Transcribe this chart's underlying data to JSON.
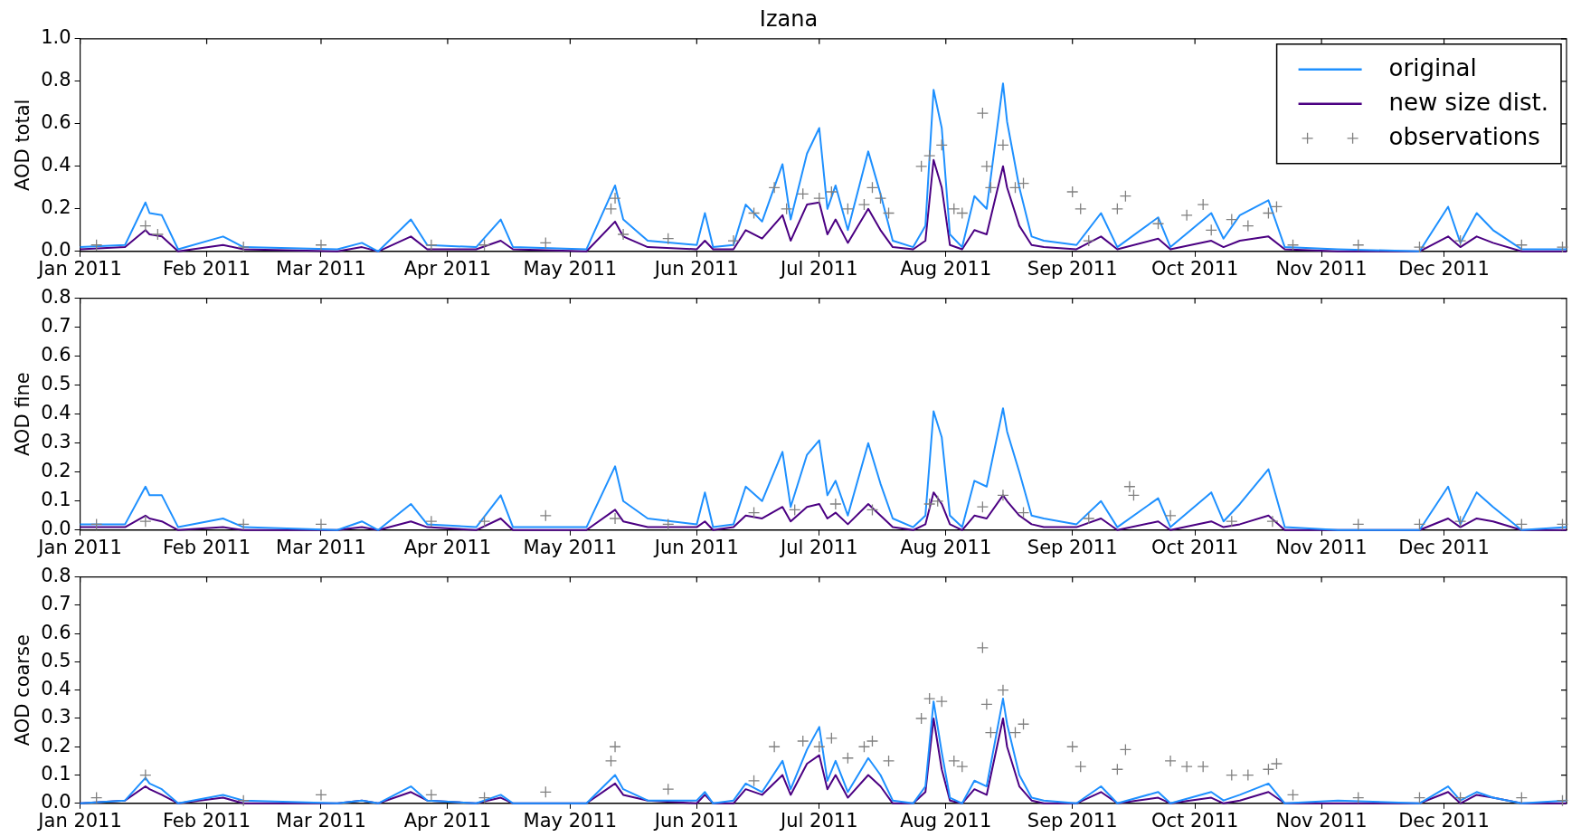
{
  "chart_data": [
    {
      "type": "line",
      "title": "Izana",
      "ylabel": "AOD total",
      "legend": "top right",
      "x": [
        "2011-01-01",
        "2011-01-12",
        "2011-01-17",
        "2011-01-18",
        "2011-01-21",
        "2011-01-25",
        "2011-02-05",
        "2011-02-10",
        "2011-03-05",
        "2011-03-11",
        "2011-03-15",
        "2011-03-23",
        "2011-03-27",
        "2011-04-08",
        "2011-04-14",
        "2011-04-17",
        "2011-05-05",
        "2011-05-12",
        "2011-05-14",
        "2011-05-20",
        "2011-06-01",
        "2011-06-03",
        "2011-06-05",
        "2011-06-10",
        "2011-06-13",
        "2011-06-17",
        "2011-06-22",
        "2011-06-24",
        "2011-06-28",
        "2011-07-01",
        "2011-07-03",
        "2011-07-05",
        "2011-07-08",
        "2011-07-13",
        "2011-07-16",
        "2011-07-19",
        "2011-07-24",
        "2011-07-27",
        "2011-07-29",
        "2011-07-31",
        "2011-08-02",
        "2011-08-05",
        "2011-08-08",
        "2011-08-11",
        "2011-08-15",
        "2011-08-16",
        "2011-08-19",
        "2011-08-22",
        "2011-08-25",
        "2011-09-02",
        "2011-09-08",
        "2011-09-12",
        "2011-09-22",
        "2011-09-25",
        "2011-10-05",
        "2011-10-08",
        "2011-10-12",
        "2011-10-19",
        "2011-10-23",
        "2011-11-05",
        "2011-11-25",
        "2011-12-02",
        "2011-12-05",
        "2011-12-09",
        "2011-12-13",
        "2011-12-20",
        "2011-12-31"
      ],
      "series": [
        {
          "name": "original",
          "color": "#1e90ff",
          "values": [
            0.02,
            0.03,
            0.23,
            0.18,
            0.17,
            0.01,
            0.07,
            0.02,
            0.01,
            0.04,
            0.0,
            0.15,
            0.03,
            0.02,
            0.15,
            0.02,
            0.01,
            0.31,
            0.15,
            0.05,
            0.03,
            0.18,
            0.02,
            0.03,
            0.22,
            0.14,
            0.41,
            0.15,
            0.46,
            0.58,
            0.2,
            0.31,
            0.1,
            0.47,
            0.27,
            0.05,
            0.02,
            0.12,
            0.76,
            0.58,
            0.08,
            0.02,
            0.26,
            0.2,
            0.79,
            0.61,
            0.3,
            0.07,
            0.05,
            0.03,
            0.18,
            0.02,
            0.16,
            0.02,
            0.18,
            0.06,
            0.17,
            0.24,
            0.02,
            0.01,
            0.0,
            0.21,
            0.04,
            0.18,
            0.1,
            0.01,
            0.01
          ]
        },
        {
          "name": "new size dist.",
          "color": "#4b0082",
          "values": [
            0.01,
            0.02,
            0.1,
            0.08,
            0.07,
            0.0,
            0.03,
            0.01,
            0.0,
            0.02,
            0.0,
            0.07,
            0.01,
            0.01,
            0.05,
            0.01,
            0.0,
            0.14,
            0.07,
            0.02,
            0.01,
            0.05,
            0.01,
            0.01,
            0.1,
            0.06,
            0.17,
            0.05,
            0.22,
            0.23,
            0.08,
            0.15,
            0.04,
            0.2,
            0.1,
            0.02,
            0.01,
            0.05,
            0.43,
            0.3,
            0.03,
            0.01,
            0.1,
            0.08,
            0.4,
            0.3,
            0.12,
            0.03,
            0.02,
            0.01,
            0.07,
            0.01,
            0.06,
            0.01,
            0.05,
            0.02,
            0.05,
            0.07,
            0.01,
            0.0,
            0.0,
            0.07,
            0.02,
            0.07,
            0.04,
            0.0,
            0.0
          ]
        },
        {
          "name": "observations",
          "type": "scatter",
          "marker": "cross",
          "color": "#808080",
          "x": [
            "2011-01-05",
            "2011-01-17",
            "2011-01-20",
            "2011-02-10",
            "2011-03-01",
            "2011-03-28",
            "2011-04-10",
            "2011-04-25",
            "2011-05-11",
            "2011-05-12",
            "2011-05-14",
            "2011-05-25",
            "2011-06-10",
            "2011-06-15",
            "2011-06-20",
            "2011-06-23",
            "2011-06-27",
            "2011-07-01",
            "2011-07-04",
            "2011-07-08",
            "2011-07-12",
            "2011-07-14",
            "2011-07-16",
            "2011-07-18",
            "2011-07-26",
            "2011-07-28",
            "2011-07-31",
            "2011-08-03",
            "2011-08-05",
            "2011-08-10",
            "2011-08-11",
            "2011-08-12",
            "2011-08-15",
            "2011-08-18",
            "2011-08-20",
            "2011-09-01",
            "2011-09-03",
            "2011-09-05",
            "2011-09-12",
            "2011-09-14",
            "2011-09-22",
            "2011-09-29",
            "2011-10-03",
            "2011-10-05",
            "2011-10-10",
            "2011-10-14",
            "2011-10-19",
            "2011-10-21",
            "2011-10-25",
            "2011-11-10",
            "2011-11-25",
            "2011-12-05",
            "2011-12-20",
            "2011-12-30"
          ],
          "values": [
            0.03,
            0.12,
            0.08,
            0.02,
            0.03,
            0.03,
            0.03,
            0.04,
            0.2,
            0.25,
            0.08,
            0.06,
            0.05,
            0.18,
            0.3,
            0.2,
            0.27,
            0.25,
            0.28,
            0.2,
            0.22,
            0.3,
            0.25,
            0.18,
            0.4,
            0.45,
            0.5,
            0.2,
            0.18,
            0.65,
            0.4,
            0.3,
            0.5,
            0.3,
            0.32,
            0.28,
            0.2,
            0.05,
            0.2,
            0.26,
            0.13,
            0.17,
            0.22,
            0.1,
            0.15,
            0.12,
            0.18,
            0.21,
            0.03,
            0.03,
            0.02,
            0.05,
            0.03,
            0.02
          ]
        }
      ],
      "xlim": [
        "2011-01-01",
        "2011-12-31"
      ],
      "xticks": [
        {
          "value": "2011-01-01",
          "label": "Jan 2011"
        },
        {
          "value": "2011-02-01",
          "label": "Feb 2011"
        },
        {
          "value": "2011-03-01",
          "label": "Mar 2011"
        },
        {
          "value": "2011-04-01",
          "label": "Apr 2011"
        },
        {
          "value": "2011-05-01",
          "label": "May 2011"
        },
        {
          "value": "2011-06-01",
          "label": "Jun 2011"
        },
        {
          "value": "2011-07-01",
          "label": "Jul 2011"
        },
        {
          "value": "2011-08-01",
          "label": "Aug 2011"
        },
        {
          "value": "2011-09-01",
          "label": "Sep 2011"
        },
        {
          "value": "2011-10-01",
          "label": "Oct 2011"
        },
        {
          "value": "2011-11-01",
          "label": "Nov 2011"
        },
        {
          "value": "2011-12-01",
          "label": "Dec 2011"
        }
      ],
      "ylim": [
        0,
        1
      ],
      "yticks": [
        {
          "value": 0,
          "label": "0.0"
        },
        {
          "value": 0.2,
          "label": "0.2"
        },
        {
          "value": 0.4,
          "label": "0.4"
        },
        {
          "value": 0.6,
          "label": "0.6"
        },
        {
          "value": 0.8,
          "label": "0.8"
        },
        {
          "value": 1,
          "label": "1.0"
        }
      ],
      "grid": false
    },
    {
      "type": "line",
      "ylabel": "AOD fine",
      "x": [
        "2011-01-01",
        "2011-01-12",
        "2011-01-17",
        "2011-01-18",
        "2011-01-21",
        "2011-01-25",
        "2011-02-05",
        "2011-02-10",
        "2011-03-05",
        "2011-03-11",
        "2011-03-15",
        "2011-03-23",
        "2011-03-27",
        "2011-04-08",
        "2011-04-14",
        "2011-04-17",
        "2011-05-05",
        "2011-05-12",
        "2011-05-14",
        "2011-05-20",
        "2011-06-01",
        "2011-06-03",
        "2011-06-05",
        "2011-06-10",
        "2011-06-13",
        "2011-06-17",
        "2011-06-22",
        "2011-06-24",
        "2011-06-28",
        "2011-07-01",
        "2011-07-03",
        "2011-07-05",
        "2011-07-08",
        "2011-07-13",
        "2011-07-16",
        "2011-07-19",
        "2011-07-24",
        "2011-07-27",
        "2011-07-29",
        "2011-07-31",
        "2011-08-02",
        "2011-08-05",
        "2011-08-08",
        "2011-08-11",
        "2011-08-15",
        "2011-08-16",
        "2011-08-19",
        "2011-08-22",
        "2011-08-25",
        "2011-09-02",
        "2011-09-08",
        "2011-09-12",
        "2011-09-22",
        "2011-09-25",
        "2011-10-05",
        "2011-10-08",
        "2011-10-12",
        "2011-10-19",
        "2011-10-23",
        "2011-11-05",
        "2011-11-25",
        "2011-12-02",
        "2011-12-05",
        "2011-12-09",
        "2011-12-13",
        "2011-12-20",
        "2011-12-31"
      ],
      "series": [
        {
          "color": "#1e90ff",
          "values": [
            0.02,
            0.02,
            0.15,
            0.12,
            0.12,
            0.01,
            0.04,
            0.01,
            0.0,
            0.03,
            0.0,
            0.09,
            0.02,
            0.01,
            0.12,
            0.01,
            0.01,
            0.22,
            0.1,
            0.04,
            0.02,
            0.13,
            0.01,
            0.02,
            0.15,
            0.1,
            0.27,
            0.08,
            0.26,
            0.31,
            0.12,
            0.17,
            0.05,
            0.3,
            0.16,
            0.04,
            0.01,
            0.05,
            0.41,
            0.32,
            0.05,
            0.01,
            0.17,
            0.15,
            0.42,
            0.34,
            0.2,
            0.05,
            0.04,
            0.02,
            0.1,
            0.01,
            0.11,
            0.01,
            0.13,
            0.03,
            0.09,
            0.21,
            0.01,
            0.0,
            0.0,
            0.15,
            0.02,
            0.13,
            0.08,
            0.0,
            0.01
          ]
        },
        {
          "color": "#4b0082",
          "values": [
            0.01,
            0.01,
            0.05,
            0.04,
            0.03,
            0.0,
            0.01,
            0.0,
            0.0,
            0.01,
            0.0,
            0.03,
            0.01,
            0.0,
            0.04,
            0.0,
            0.0,
            0.07,
            0.03,
            0.01,
            0.01,
            0.03,
            0.0,
            0.01,
            0.05,
            0.04,
            0.08,
            0.03,
            0.08,
            0.09,
            0.04,
            0.06,
            0.02,
            0.09,
            0.05,
            0.01,
            0.0,
            0.02,
            0.13,
            0.09,
            0.02,
            0.0,
            0.05,
            0.04,
            0.12,
            0.1,
            0.05,
            0.02,
            0.01,
            0.01,
            0.04,
            0.0,
            0.03,
            0.0,
            0.03,
            0.01,
            0.02,
            0.05,
            0.0,
            0.0,
            0.0,
            0.04,
            0.01,
            0.04,
            0.03,
            0.0,
            0.0
          ]
        },
        {
          "type": "scatter",
          "marker": "cross",
          "color": "#808080",
          "x": [
            "2011-01-05",
            "2011-01-17",
            "2011-02-10",
            "2011-03-01",
            "2011-03-28",
            "2011-04-10",
            "2011-04-25",
            "2011-05-12",
            "2011-05-25",
            "2011-06-15",
            "2011-06-25",
            "2011-07-05",
            "2011-07-14",
            "2011-07-28",
            "2011-07-30",
            "2011-08-10",
            "2011-08-15",
            "2011-08-20",
            "2011-09-05",
            "2011-09-15",
            "2011-09-16",
            "2011-09-25",
            "2011-10-10",
            "2011-10-20",
            "2011-11-10",
            "2011-11-25",
            "2011-12-05",
            "2011-12-20",
            "2011-12-30"
          ],
          "values": [
            0.02,
            0.03,
            0.02,
            0.02,
            0.03,
            0.03,
            0.05,
            0.04,
            0.02,
            0.06,
            0.07,
            0.09,
            0.07,
            0.09,
            0.1,
            0.08,
            0.12,
            0.06,
            0.04,
            0.15,
            0.12,
            0.05,
            0.03,
            0.03,
            0.02,
            0.02,
            0.03,
            0.02,
            0.02
          ]
        }
      ],
      "xlim": [
        "2011-01-01",
        "2011-12-31"
      ],
      "xticks": [
        {
          "value": "2011-01-01",
          "label": "Jan 2011"
        },
        {
          "value": "2011-02-01",
          "label": "Feb 2011"
        },
        {
          "value": "2011-03-01",
          "label": "Mar 2011"
        },
        {
          "value": "2011-04-01",
          "label": "Apr 2011"
        },
        {
          "value": "2011-05-01",
          "label": "May 2011"
        },
        {
          "value": "2011-06-01",
          "label": "Jun 2011"
        },
        {
          "value": "2011-07-01",
          "label": "Jul 2011"
        },
        {
          "value": "2011-08-01",
          "label": "Aug 2011"
        },
        {
          "value": "2011-09-01",
          "label": "Sep 2011"
        },
        {
          "value": "2011-10-01",
          "label": "Oct 2011"
        },
        {
          "value": "2011-11-01",
          "label": "Nov 2011"
        },
        {
          "value": "2011-12-01",
          "label": "Dec 2011"
        }
      ],
      "ylim": [
        0,
        0.8
      ],
      "yticks": [
        {
          "value": 0,
          "label": "0.0"
        },
        0.1,
        0.2,
        0.3,
        0.4,
        0.5,
        0.6,
        0.7,
        0.8
      ],
      "grid": false
    },
    {
      "type": "line",
      "ylabel": "AOD coarse",
      "x": [
        "2011-01-01",
        "2011-01-12",
        "2011-01-17",
        "2011-01-18",
        "2011-01-21",
        "2011-01-25",
        "2011-02-05",
        "2011-02-10",
        "2011-03-05",
        "2011-03-11",
        "2011-03-15",
        "2011-03-23",
        "2011-03-27",
        "2011-04-08",
        "2011-04-14",
        "2011-04-17",
        "2011-05-05",
        "2011-05-12",
        "2011-05-14",
        "2011-05-20",
        "2011-06-01",
        "2011-06-03",
        "2011-06-05",
        "2011-06-10",
        "2011-06-13",
        "2011-06-17",
        "2011-06-22",
        "2011-06-24",
        "2011-06-28",
        "2011-07-01",
        "2011-07-03",
        "2011-07-05",
        "2011-07-08",
        "2011-07-13",
        "2011-07-16",
        "2011-07-19",
        "2011-07-24",
        "2011-07-27",
        "2011-07-29",
        "2011-07-31",
        "2011-08-02",
        "2011-08-05",
        "2011-08-08",
        "2011-08-11",
        "2011-08-15",
        "2011-08-16",
        "2011-08-19",
        "2011-08-22",
        "2011-08-25",
        "2011-09-02",
        "2011-09-08",
        "2011-09-12",
        "2011-09-22",
        "2011-09-25",
        "2011-10-05",
        "2011-10-08",
        "2011-10-12",
        "2011-10-19",
        "2011-10-23",
        "2011-11-05",
        "2011-11-25",
        "2011-12-02",
        "2011-12-05",
        "2011-12-09",
        "2011-12-13",
        "2011-12-20",
        "2011-12-31"
      ],
      "series": [
        {
          "color": "#1e90ff",
          "values": [
            0.0,
            0.01,
            0.09,
            0.07,
            0.05,
            0.0,
            0.03,
            0.01,
            0.0,
            0.01,
            0.0,
            0.06,
            0.01,
            0.0,
            0.03,
            0.0,
            0.0,
            0.1,
            0.05,
            0.01,
            0.01,
            0.04,
            0.0,
            0.01,
            0.07,
            0.04,
            0.15,
            0.05,
            0.19,
            0.27,
            0.08,
            0.15,
            0.04,
            0.16,
            0.1,
            0.01,
            0.0,
            0.06,
            0.36,
            0.18,
            0.02,
            0.0,
            0.08,
            0.06,
            0.37,
            0.28,
            0.1,
            0.02,
            0.01,
            0.0,
            0.06,
            0.0,
            0.04,
            0.0,
            0.04,
            0.01,
            0.03,
            0.07,
            0.0,
            0.01,
            0.0,
            0.06,
            0.01,
            0.04,
            0.02,
            0.0,
            0.01
          ]
        },
        {
          "color": "#4b0082",
          "values": [
            0.0,
            0.01,
            0.06,
            0.05,
            0.03,
            0.0,
            0.02,
            0.0,
            0.0,
            0.01,
            0.0,
            0.04,
            0.01,
            0.0,
            0.02,
            0.0,
            0.0,
            0.07,
            0.03,
            0.01,
            0.0,
            0.03,
            0.0,
            0.0,
            0.05,
            0.03,
            0.1,
            0.03,
            0.14,
            0.17,
            0.05,
            0.1,
            0.02,
            0.1,
            0.06,
            0.0,
            0.0,
            0.04,
            0.3,
            0.12,
            0.01,
            0.0,
            0.05,
            0.03,
            0.3,
            0.2,
            0.06,
            0.01,
            0.0,
            0.0,
            0.04,
            0.0,
            0.02,
            0.0,
            0.02,
            0.0,
            0.01,
            0.04,
            0.0,
            0.0,
            0.0,
            0.04,
            0.0,
            0.03,
            0.02,
            0.0,
            0.0
          ]
        },
        {
          "type": "scatter",
          "marker": "cross",
          "color": "#808080",
          "x": [
            "2011-01-05",
            "2011-01-17",
            "2011-02-10",
            "2011-03-01",
            "2011-03-28",
            "2011-04-10",
            "2011-04-25",
            "2011-05-11",
            "2011-05-12",
            "2011-05-25",
            "2011-06-15",
            "2011-06-20",
            "2011-06-27",
            "2011-07-01",
            "2011-07-04",
            "2011-07-08",
            "2011-07-12",
            "2011-07-14",
            "2011-07-18",
            "2011-07-26",
            "2011-07-28",
            "2011-07-31",
            "2011-08-03",
            "2011-08-05",
            "2011-08-10",
            "2011-08-11",
            "2011-08-12",
            "2011-08-15",
            "2011-08-18",
            "2011-08-20",
            "2011-09-01",
            "2011-09-03",
            "2011-09-12",
            "2011-09-14",
            "2011-09-25",
            "2011-09-29",
            "2011-10-03",
            "2011-10-10",
            "2011-10-14",
            "2011-10-19",
            "2011-10-21",
            "2011-10-25",
            "2011-11-10",
            "2011-11-25",
            "2011-12-05",
            "2011-12-20",
            "2011-12-30"
          ],
          "values": [
            0.02,
            0.1,
            0.01,
            0.03,
            0.03,
            0.02,
            0.04,
            0.15,
            0.2,
            0.05,
            0.08,
            0.2,
            0.22,
            0.2,
            0.23,
            0.16,
            0.2,
            0.22,
            0.15,
            0.3,
            0.37,
            0.36,
            0.15,
            0.13,
            0.55,
            0.35,
            0.25,
            0.4,
            0.25,
            0.28,
            0.2,
            0.13,
            0.12,
            0.19,
            0.15,
            0.13,
            0.13,
            0.1,
            0.1,
            0.12,
            0.14,
            0.03,
            0.02,
            0.02,
            0.02,
            0.02,
            0.01
          ]
        }
      ],
      "xlim": [
        "2011-01-01",
        "2011-12-31"
      ],
      "xticks": [
        {
          "value": "2011-01-01",
          "label": "Jan 2011"
        },
        {
          "value": "2011-02-01",
          "label": "Feb 2011"
        },
        {
          "value": "2011-03-01",
          "label": "Mar 2011"
        },
        {
          "value": "2011-04-01",
          "label": "Apr 2011"
        },
        {
          "value": "2011-05-01",
          "label": "May 2011"
        },
        {
          "value": "2011-06-01",
          "label": "Jun 2011"
        },
        {
          "value": "2011-07-01",
          "label": "Jul 2011"
        },
        {
          "value": "2011-08-01",
          "label": "Aug 2011"
        },
        {
          "value": "2011-09-01",
          "label": "Sep 2011"
        },
        {
          "value": "2011-10-01",
          "label": "Oct 2011"
        },
        {
          "value": "2011-11-01",
          "label": "Nov 2011"
        },
        {
          "value": "2011-12-01",
          "label": "Dec 2011"
        }
      ],
      "ylim": [
        0,
        0.8
      ],
      "yticks": [
        {
          "value": 0,
          "label": "0.0"
        },
        0.1,
        0.2,
        0.3,
        0.4,
        0.5,
        0.6,
        0.7,
        0.8
      ],
      "grid": false
    }
  ]
}
